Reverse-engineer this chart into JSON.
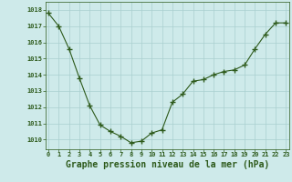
{
  "x": [
    0,
    1,
    2,
    3,
    4,
    5,
    6,
    7,
    8,
    9,
    10,
    11,
    12,
    13,
    14,
    15,
    16,
    17,
    18,
    19,
    20,
    21,
    22,
    23
  ],
  "y": [
    1017.8,
    1017.0,
    1015.6,
    1013.8,
    1012.1,
    1010.9,
    1010.5,
    1010.2,
    1009.8,
    1009.9,
    1010.4,
    1010.6,
    1012.3,
    1012.8,
    1013.6,
    1013.7,
    1014.0,
    1014.2,
    1014.3,
    1014.6,
    1015.6,
    1016.5,
    1017.2,
    1017.2
  ],
  "ylim_min": 1009.4,
  "ylim_max": 1018.5,
  "yticks": [
    1010,
    1011,
    1012,
    1013,
    1014,
    1015,
    1016,
    1017,
    1018
  ],
  "xticks": [
    0,
    1,
    2,
    3,
    4,
    5,
    6,
    7,
    8,
    9,
    10,
    11,
    12,
    13,
    14,
    15,
    16,
    17,
    18,
    19,
    20,
    21,
    22,
    23
  ],
  "xlabel": "Graphe pression niveau de la mer (hPa)",
  "line_color": "#2d5a1b",
  "marker": "+",
  "marker_size": 4,
  "marker_lw": 1.0,
  "line_width": 0.8,
  "bg_color": "#ceeaea",
  "grid_color": "#aacfcf",
  "tick_label_color": "#2d5a1b",
  "xlabel_color": "#2d5a1b",
  "tick_fontsize": 5.0,
  "xlabel_fontsize": 7.0,
  "spine_color": "#2d5a1b"
}
